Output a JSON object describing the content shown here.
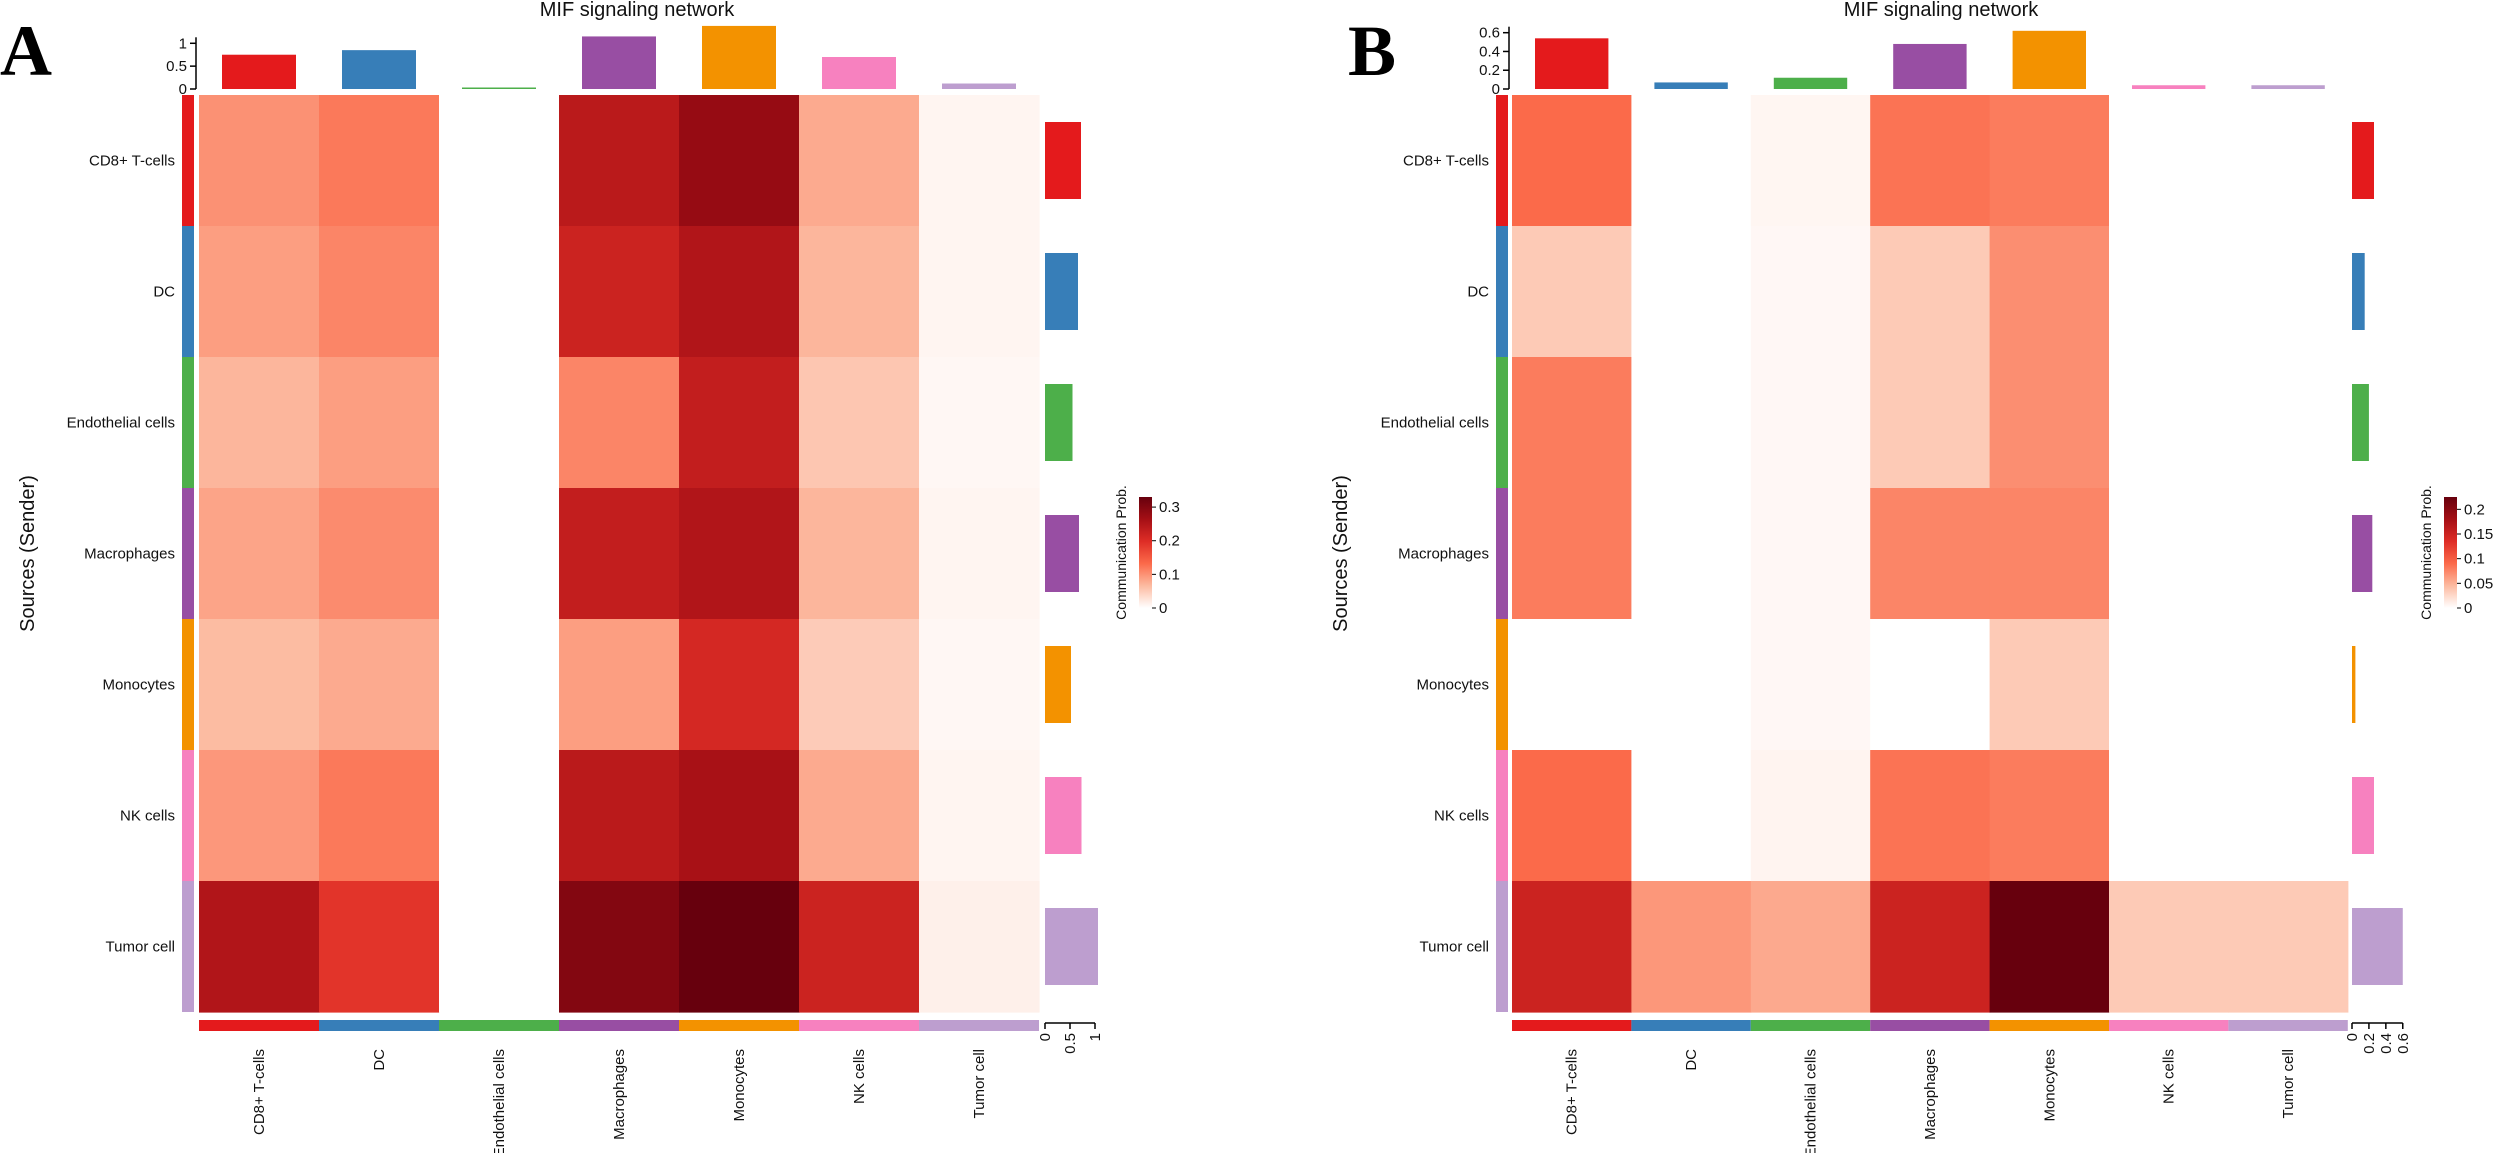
{
  "figure": {
    "panels": [
      "A",
      "B"
    ],
    "palette": {
      "CD8+ T-cells": "#e41a1c",
      "DC": "#377eb8",
      "Endothelial cells": "#4daf4a",
      "Macrophages": "#984ea3",
      "Monocytes": "#f39200",
      "NK cells": "#f781bf",
      "Tumor cell": "#bd9ecf"
    },
    "heat_colors": [
      "#ffffff",
      "#fcbba1",
      "#fb6a4a",
      "#de2d26",
      "#a50f15",
      "#67000d"
    ]
  },
  "chart_data": [
    {
      "type": "heatmap",
      "panel": "A",
      "title": "MIF signaling network",
      "ylabel": "Sources (Sender)",
      "legend_title": "Communication Prob.",
      "rows": [
        "CD8+ T-cells",
        "DC",
        "Endothelial cells",
        "Macrophages",
        "Monocytes",
        "NK cells",
        "Tumor cell"
      ],
      "cols": [
        "CD8+ T-cells",
        "DC",
        "Endothelial cells",
        "Macrophages",
        "Monocytes",
        "NK cells",
        "Tumor cell"
      ],
      "values": [
        [
          0.1,
          0.12,
          0.0,
          0.24,
          0.28,
          0.08,
          0.01
        ],
        [
          0.09,
          0.11,
          0.0,
          0.22,
          0.25,
          0.07,
          0.01
        ],
        [
          0.07,
          0.09,
          0.0,
          0.11,
          0.23,
          0.055,
          0.008
        ],
        [
          0.085,
          0.105,
          0.0,
          0.23,
          0.25,
          0.07,
          0.01
        ],
        [
          0.065,
          0.08,
          0.0,
          0.09,
          0.21,
          0.05,
          0.008
        ],
        [
          0.095,
          0.12,
          0.0,
          0.24,
          0.26,
          0.08,
          0.01
        ],
        [
          0.25,
          0.19,
          0.0,
          0.3,
          0.33,
          0.22,
          0.015
        ]
      ],
      "color_max": 0.33,
      "legend_ticks": [
        0,
        0.1,
        0.2,
        0.3
      ],
      "legend_tick_labels": [
        "0",
        "0.1",
        "0.2",
        "0.3"
      ],
      "top_bar_values": [
        0.75,
        0.85,
        0.03,
        1.15,
        1.38,
        0.7,
        0.12
      ],
      "top_ylim": [
        0,
        1.4
      ],
      "top_ticks": [
        0,
        0.5,
        1
      ],
      "top_tick_labels": [
        "0",
        "0.5",
        "1"
      ],
      "right_bar_values": [
        0.72,
        0.66,
        0.55,
        0.68,
        0.52,
        0.73,
        1.06
      ],
      "right_xlim": [
        0,
        1.1
      ],
      "right_ticks": [
        0,
        0.5,
        1
      ],
      "right_tick_labels": [
        "0",
        "0.5",
        "1"
      ]
    },
    {
      "type": "heatmap",
      "panel": "B",
      "title": "MIF signaling network",
      "ylabel": "Sources (Sender)",
      "legend_title": "Communication Prob.",
      "rows": [
        "CD8+ T-cells",
        "DC",
        "Endothelial cells",
        "Macrophages",
        "Monocytes",
        "NK cells",
        "Tumor cell"
      ],
      "cols": [
        "CD8+ T-cells",
        "DC",
        "Endothelial cells",
        "Macrophages",
        "Monocytes",
        "NK cells",
        "Tumor cell"
      ],
      "values": [
        [
          0.09,
          0.0,
          0.006,
          0.085,
          0.08,
          0.0,
          0.0
        ],
        [
          0.035,
          0.0,
          0.005,
          0.035,
          0.07,
          0.0,
          0.0
        ],
        [
          0.08,
          0.0,
          0.005,
          0.035,
          0.07,
          0.0,
          0.0
        ],
        [
          0.08,
          0.0,
          0.005,
          0.075,
          0.075,
          0.0,
          0.0
        ],
        [
          0.0,
          0.0,
          0.005,
          0.0,
          0.035,
          0.0,
          0.0
        ],
        [
          0.09,
          0.0,
          0.007,
          0.085,
          0.08,
          0.0,
          0.0
        ],
        [
          0.15,
          0.065,
          0.055,
          0.15,
          0.225,
          0.035,
          0.035
        ]
      ],
      "color_max": 0.225,
      "legend_ticks": [
        0,
        0.05,
        0.1,
        0.15,
        0.2
      ],
      "legend_tick_labels": [
        "0",
        "0.05",
        "0.1",
        "0.15",
        "0.2"
      ],
      "top_bar_values": [
        0.54,
        0.07,
        0.12,
        0.48,
        0.62,
        0.04,
        0.04
      ],
      "top_ylim": [
        0,
        0.65
      ],
      "top_ticks": [
        0,
        0.2,
        0.4,
        0.6
      ],
      "top_tick_labels": [
        "0",
        "0.2",
        "0.4",
        "0.6"
      ],
      "right_bar_values": [
        0.26,
        0.15,
        0.2,
        0.24,
        0.04,
        0.26,
        0.6
      ],
      "right_xlim": [
        0,
        0.65
      ],
      "right_ticks": [
        0,
        0.2,
        0.4,
        0.6
      ],
      "right_tick_labels": [
        "0",
        "0.2",
        "0.4",
        "0.6"
      ]
    }
  ]
}
